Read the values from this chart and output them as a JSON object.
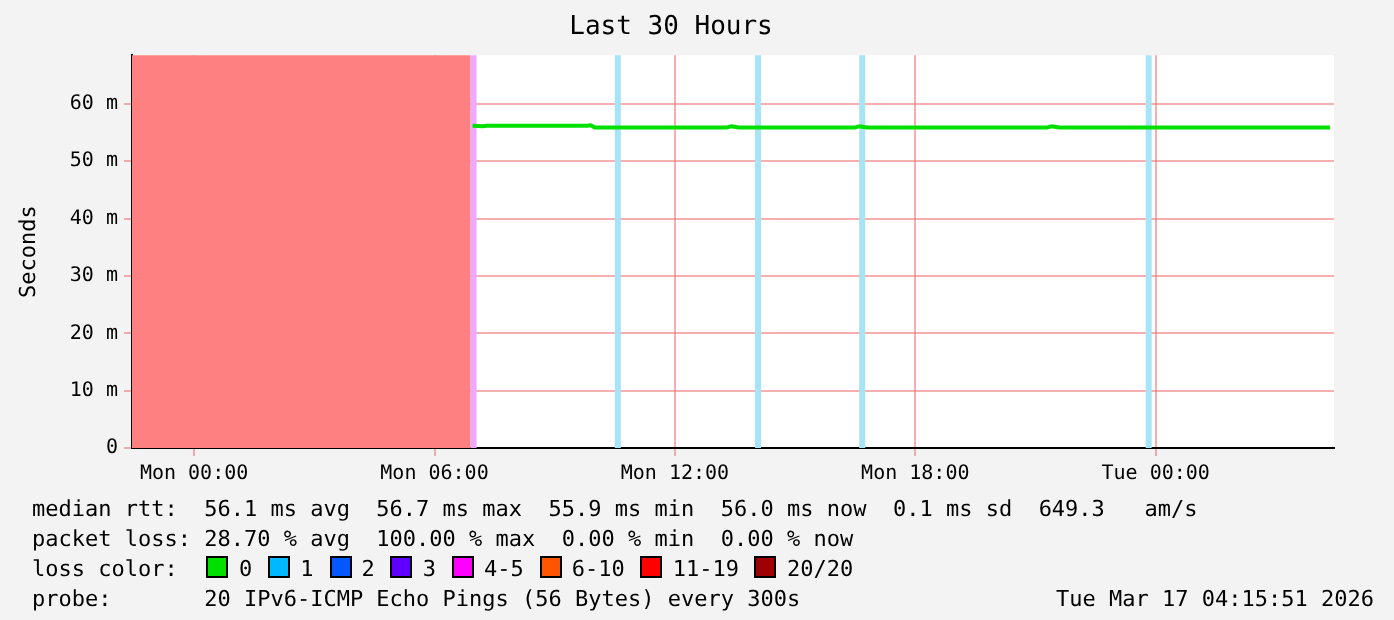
{
  "chart_data": {
    "type": "line",
    "title": "Last 30 Hours",
    "ylabel": "Seconds",
    "xlim": [
      "2026-03-15T22:27",
      "2026-03-17T04:27"
    ],
    "xticks": [
      {
        "value": "2026-03-16T00:00",
        "label": "Mon 00:00"
      },
      {
        "value": "2026-03-16T06:00",
        "label": "Mon 06:00"
      },
      {
        "value": "2026-03-16T12:00",
        "label": "Mon 12:00"
      },
      {
        "value": "2026-03-16T18:00",
        "label": "Mon 18:00"
      },
      {
        "value": "2026-03-17T00:00",
        "label": "Tue 00:00"
      }
    ],
    "ylim": [
      0,
      68.5
    ],
    "yticks": [
      0,
      {
        "value": 10,
        "label": "10 m"
      },
      {
        "value": 20,
        "label": "20 m"
      },
      {
        "value": 30,
        "label": "30 m"
      },
      {
        "value": 40,
        "label": "40 m"
      },
      {
        "value": 50,
        "label": "50 m"
      },
      {
        "value": 60,
        "label": "60 m"
      }
    ],
    "grid": true,
    "legend": "bottom",
    "legend_title": "loss color:",
    "marker": "none",
    "series": [
      {
        "name": "0",
        "color": "#00e000",
        "x": [
          "2026-03-16T06:57",
          "2026-03-16T07:12",
          "2026-03-16T07:18",
          "2026-03-16T08:00",
          "2026-03-16T09:00",
          "2026-03-16T09:48",
          "2026-03-16T09:54",
          "2026-03-16T10:00",
          "2026-03-16T12:00",
          "2026-03-16T13:18",
          "2026-03-16T13:24",
          "2026-03-16T13:36",
          "2026-03-16T14:00",
          "2026-03-16T15:30",
          "2026-03-16T16:30",
          "2026-03-16T16:36",
          "2026-03-16T16:48",
          "2026-03-16T18:00",
          "2026-03-16T20:00",
          "2026-03-16T21:18",
          "2026-03-16T21:24",
          "2026-03-16T21:36",
          "2026-03-17T00:00",
          "2026-03-17T02:00",
          "2026-03-17T04:21"
        ],
        "values": [
          56.2,
          56.1,
          56.2,
          56.2,
          56.2,
          56.2,
          56.3,
          55.9,
          55.9,
          55.9,
          56.1,
          55.9,
          55.9,
          55.9,
          55.9,
          56.1,
          55.9,
          55.9,
          55.9,
          55.9,
          56.1,
          55.9,
          55.9,
          55.9,
          55.9
        ]
      },
      {
        "name": "1",
        "color": "#00b8ff"
      },
      {
        "name": "2",
        "color": "#0059ff"
      },
      {
        "name": "3",
        "color": "#5e00ff"
      },
      {
        "name": "4-5",
        "color": "#ff00ff"
      },
      {
        "name": "6-10",
        "color": "#ff5500"
      },
      {
        "name": "11-19",
        "color": "#ff0000"
      },
      {
        "name": "20/20",
        "color": "#a00000"
      }
    ],
    "bands": [
      {
        "axis": "x",
        "from": "2026-03-15T22:27",
        "to": "2026-03-16T06:54",
        "color": "#ff8080"
      },
      {
        "axis": "x",
        "from": "2026-03-16T06:54",
        "to": "2026-03-16T07:03",
        "color": "#f0a8ff"
      },
      {
        "axis": "x",
        "from": "2026-03-16T10:30",
        "to": "2026-03-16T10:39",
        "color": "#a8e4f8"
      },
      {
        "axis": "x",
        "from": "2026-03-16T14:00",
        "to": "2026-03-16T14:09",
        "color": "#a8e4f8"
      },
      {
        "axis": "x",
        "from": "2026-03-16T16:36",
        "to": "2026-03-16T16:45",
        "color": "#a8e4f8"
      },
      {
        "axis": "x",
        "from": "2026-03-16T23:45",
        "to": "2026-03-16T23:54",
        "color": "#a8e4f8"
      }
    ],
    "annotations": [
      "median rtt:  56.1 ms avg  56.7 ms max  55.9 ms min  56.0 ms now  0.1 ms sd  649.3   am/s",
      "packet loss: 28.70 % avg  100.00 % max  0.00 % min  0.00 % now",
      "probe:       20 IPv6-ICMP Echo Pings (56 Bytes) every 300s",
      "Tue Mar 17 04:15:51 2026"
    ]
  }
}
